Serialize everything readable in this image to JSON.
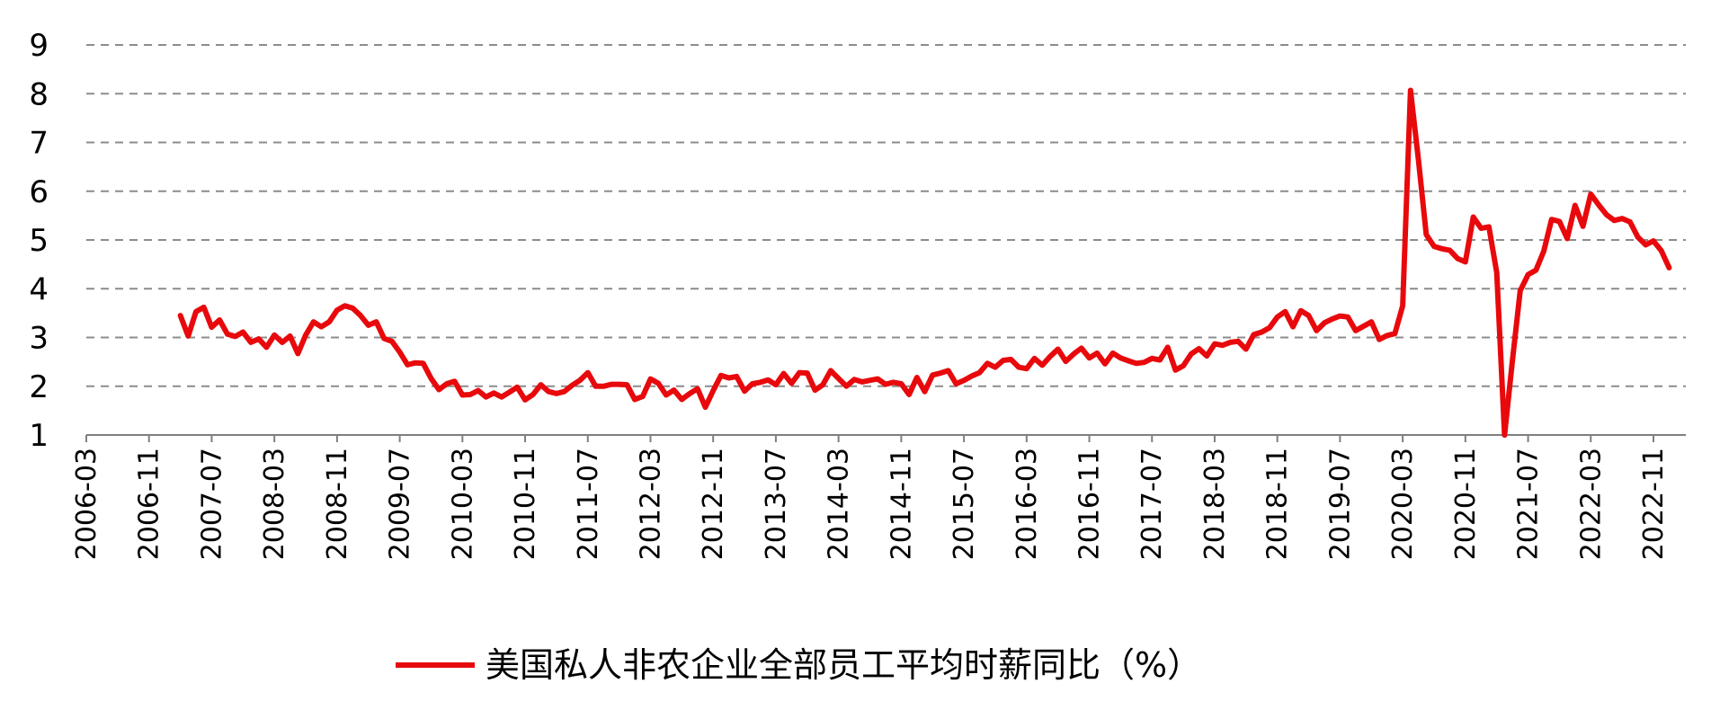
{
  "chart_data": {
    "type": "line",
    "title": "",
    "xlabel": "",
    "ylabel": "",
    "ylim": [
      1,
      9
    ],
    "yticks": [
      "1",
      "2",
      "3",
      "4",
      "5",
      "6",
      "7",
      "8",
      "9"
    ],
    "xticks": [
      "2006-03",
      "2006-11",
      "2007-07",
      "2008-03",
      "2008-11",
      "2009-07",
      "2010-03",
      "2010-11",
      "2011-07",
      "2012-03",
      "2012-11",
      "2013-07",
      "2014-03",
      "2014-11",
      "2015-07",
      "2016-03",
      "2016-11",
      "2017-07",
      "2018-03",
      "2018-11",
      "2019-07",
      "2020-03",
      "2020-11",
      "2021-07",
      "2022-03",
      "2022-11"
    ],
    "grid": true,
    "legend_position": "bottom",
    "colors": {
      "series": "#e8090c",
      "grid": "#8c8c8c",
      "axis": "#7f7f7f"
    },
    "series": [
      {
        "name": "美国私人非农企业全部员工平均时薪同比（%）",
        "x": [
          "2007-03",
          "2007-04",
          "2007-05",
          "2007-06",
          "2007-07",
          "2007-08",
          "2007-09",
          "2007-10",
          "2007-11",
          "2007-12",
          "2008-01",
          "2008-02",
          "2008-03",
          "2008-04",
          "2008-05",
          "2008-06",
          "2008-07",
          "2008-08",
          "2008-09",
          "2008-10",
          "2008-11",
          "2008-12",
          "2009-01",
          "2009-02",
          "2009-03",
          "2009-04",
          "2009-05",
          "2009-06",
          "2009-07",
          "2009-08",
          "2009-09",
          "2009-10",
          "2009-11",
          "2009-12",
          "2010-01",
          "2010-02",
          "2010-03",
          "2010-04",
          "2010-05",
          "2010-06",
          "2010-07",
          "2010-08",
          "2010-09",
          "2010-10",
          "2010-11",
          "2010-12",
          "2011-01",
          "2011-02",
          "2011-03",
          "2011-04",
          "2011-05",
          "2011-06",
          "2011-07",
          "2011-08",
          "2011-09",
          "2011-10",
          "2011-11",
          "2011-12",
          "2012-01",
          "2012-02",
          "2012-03",
          "2012-04",
          "2012-05",
          "2012-06",
          "2012-07",
          "2012-08",
          "2012-09",
          "2012-10",
          "2012-11",
          "2012-12",
          "2013-01",
          "2013-02",
          "2013-03",
          "2013-04",
          "2013-05",
          "2013-06",
          "2013-07",
          "2013-08",
          "2013-09",
          "2013-10",
          "2013-11",
          "2013-12",
          "2014-01",
          "2014-02",
          "2014-03",
          "2014-04",
          "2014-05",
          "2014-06",
          "2014-07",
          "2014-08",
          "2014-09",
          "2014-10",
          "2014-11",
          "2014-12",
          "2015-01",
          "2015-02",
          "2015-03",
          "2015-04",
          "2015-05",
          "2015-06",
          "2015-07",
          "2015-08",
          "2015-09",
          "2015-10",
          "2015-11",
          "2015-12",
          "2016-01",
          "2016-02",
          "2016-03",
          "2016-04",
          "2016-05",
          "2016-06",
          "2016-07",
          "2016-08",
          "2016-09",
          "2016-10",
          "2016-11",
          "2016-12",
          "2017-01",
          "2017-02",
          "2017-03",
          "2017-04",
          "2017-05",
          "2017-06",
          "2017-07",
          "2017-08",
          "2017-09",
          "2017-10",
          "2017-11",
          "2017-12",
          "2018-01",
          "2018-02",
          "2018-03",
          "2018-04",
          "2018-05",
          "2018-06",
          "2018-07",
          "2018-08",
          "2018-09",
          "2018-10",
          "2018-11",
          "2018-12",
          "2019-01",
          "2019-02",
          "2019-03",
          "2019-04",
          "2019-05",
          "2019-06",
          "2019-07",
          "2019-08",
          "2019-09",
          "2019-10",
          "2019-11",
          "2019-12",
          "2020-01",
          "2020-02",
          "2020-03",
          "2020-04",
          "2020-05",
          "2020-06",
          "2020-07",
          "2020-08",
          "2020-09",
          "2020-10",
          "2020-11",
          "2020-12",
          "2021-01",
          "2021-02",
          "2021-03",
          "2021-04",
          "2021-05",
          "2021-06",
          "2021-07",
          "2021-08",
          "2021-09",
          "2021-10",
          "2021-11",
          "2021-12",
          "2022-01",
          "2022-02",
          "2022-03",
          "2022-04",
          "2022-05",
          "2022-06",
          "2022-07",
          "2022-08",
          "2022-09",
          "2022-10",
          "2022-11",
          "2022-12",
          "2023-01"
        ],
        "values": [
          3.45,
          3.03,
          3.53,
          3.62,
          3.21,
          3.36,
          3.07,
          3.02,
          3.11,
          2.9,
          2.97,
          2.8,
          3.05,
          2.9,
          3.03,
          2.67,
          3.05,
          3.32,
          3.22,
          3.32,
          3.56,
          3.65,
          3.6,
          3.45,
          3.25,
          3.32,
          2.98,
          2.92,
          2.7,
          2.44,
          2.48,
          2.47,
          2.16,
          1.93,
          2.05,
          2.1,
          1.82,
          1.83,
          1.91,
          1.78,
          1.86,
          1.78,
          1.88,
          1.98,
          1.72,
          1.83,
          2.03,
          1.89,
          1.85,
          1.89,
          2.02,
          2.12,
          2.28,
          2.0,
          2.0,
          2.04,
          2.04,
          2.03,
          1.73,
          1.79,
          2.15,
          2.06,
          1.82,
          1.92,
          1.73,
          1.85,
          1.95,
          1.57,
          1.91,
          2.22,
          2.17,
          2.2,
          1.9,
          2.05,
          2.08,
          2.13,
          2.03,
          2.26,
          2.06,
          2.28,
          2.27,
          1.92,
          2.03,
          2.32,
          2.16,
          2.0,
          2.14,
          2.09,
          2.12,
          2.15,
          2.04,
          2.08,
          2.05,
          1.83,
          2.18,
          1.89,
          2.23,
          2.27,
          2.32,
          2.05,
          2.12,
          2.21,
          2.28,
          2.47,
          2.39,
          2.53,
          2.55,
          2.39,
          2.36,
          2.57,
          2.43,
          2.61,
          2.76,
          2.51,
          2.66,
          2.78,
          2.58,
          2.68,
          2.46,
          2.68,
          2.58,
          2.52,
          2.47,
          2.49,
          2.57,
          2.54,
          2.8,
          2.33,
          2.42,
          2.66,
          2.77,
          2.62,
          2.87,
          2.84,
          2.9,
          2.92,
          2.76,
          3.06,
          3.11,
          3.2,
          3.42,
          3.53,
          3.22,
          3.55,
          3.45,
          3.14,
          3.3,
          3.38,
          3.44,
          3.42,
          3.14,
          3.23,
          3.32,
          2.96,
          3.04,
          3.08,
          3.65,
          8.07,
          6.66,
          5.11,
          4.87,
          4.82,
          4.79,
          4.62,
          4.55,
          5.47,
          5.24,
          5.27,
          4.33,
          1.0,
          2.52,
          3.96,
          4.29,
          4.38,
          4.77,
          5.42,
          5.38,
          5.03,
          5.71,
          5.28,
          5.94,
          5.72,
          5.52,
          5.4,
          5.44,
          5.37,
          5.06,
          4.9,
          4.98,
          4.78,
          4.43
        ]
      }
    ]
  }
}
